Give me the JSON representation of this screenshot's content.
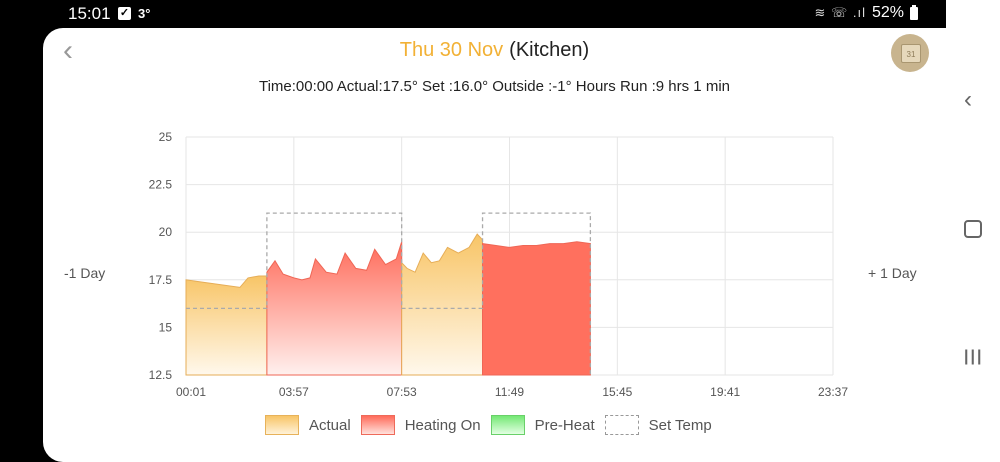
{
  "status_bar": {
    "time": "15:01",
    "temp": "3°",
    "battery": "52%",
    "check": "✓",
    "icons": "≋ ☏ .ıl"
  },
  "header": {
    "date": "Thu 30 Nov",
    "room": "(Kitchen)",
    "calendar_day": "31"
  },
  "info_line": "Time:00:00 Actual:17.5° Set :16.0° Outside :-1° Hours Run :9 hrs 1 min",
  "nav": {
    "prev_day": "-1 Day",
    "next_day": "+ 1 Day"
  },
  "legend": {
    "actual": "Actual",
    "heating_on": "Heating On",
    "pre_heat": "Pre-Heat",
    "set_temp": "Set Temp"
  },
  "colors": {
    "accent": "#f2b135",
    "actual": "#f8c567",
    "heating": "#ff6b5a",
    "preheat": "#74e874",
    "set_temp": "#aaaaaa",
    "grid": "#e6e6e6"
  },
  "chart_data": {
    "type": "area",
    "title": "",
    "xlabel": "",
    "ylabel": "",
    "ylim": [
      12.5,
      25
    ],
    "y_ticks": [
      "25",
      "22.5",
      "20",
      "17.5",
      "15",
      "12.5"
    ],
    "x_tick_labels": [
      "00:01",
      "03:57",
      "07:53",
      "11:49",
      "15:45",
      "19:41",
      "23:37"
    ],
    "x_unit": "hours",
    "xlim": [
      0,
      24
    ],
    "grid": true,
    "set_temp": [
      {
        "from": 0,
        "to": 3,
        "temp": 16
      },
      {
        "from": 3,
        "to": 8,
        "temp": 21
      },
      {
        "from": 8,
        "to": 11,
        "temp": 16
      },
      {
        "from": 11,
        "to": 15,
        "temp": 21
      }
    ],
    "segments": [
      {
        "state": "actual",
        "points": [
          [
            0,
            17.5
          ],
          [
            0.5,
            17.4
          ],
          [
            1,
            17.3
          ],
          [
            1.5,
            17.2
          ],
          [
            2,
            17.1
          ],
          [
            2.3,
            17.6
          ],
          [
            2.7,
            17.7
          ],
          [
            3,
            17.7
          ]
        ]
      },
      {
        "state": "heating",
        "points": [
          [
            3,
            17.9
          ],
          [
            3.3,
            18.5
          ],
          [
            3.6,
            17.8
          ],
          [
            4,
            17.6
          ],
          [
            4.3,
            17.5
          ],
          [
            4.6,
            17.6
          ],
          [
            4.8,
            18.6
          ],
          [
            5.2,
            17.9
          ],
          [
            5.6,
            17.8
          ],
          [
            5.9,
            18.9
          ],
          [
            6.3,
            18.1
          ],
          [
            6.7,
            18.0
          ],
          [
            7,
            19.1
          ],
          [
            7.4,
            18.3
          ],
          [
            7.8,
            18.6
          ],
          [
            8,
            19.5
          ]
        ]
      },
      {
        "state": "actual",
        "points": [
          [
            8,
            18.4
          ],
          [
            8.2,
            18.1
          ],
          [
            8.5,
            17.9
          ],
          [
            8.8,
            18.9
          ],
          [
            9.1,
            18.4
          ],
          [
            9.4,
            18.5
          ],
          [
            9.7,
            19.2
          ],
          [
            10.1,
            18.9
          ],
          [
            10.5,
            19.2
          ],
          [
            10.8,
            19.9
          ],
          [
            11,
            19.6
          ]
        ]
      },
      {
        "state": "heating",
        "points": [
          [
            11,
            19.4
          ],
          [
            11.5,
            19.3
          ],
          [
            12,
            19.2
          ],
          [
            12.5,
            19.3
          ],
          [
            13,
            19.3
          ],
          [
            13.5,
            19.4
          ],
          [
            14,
            19.4
          ],
          [
            14.5,
            19.5
          ],
          [
            15,
            19.4
          ]
        ]
      }
    ]
  }
}
